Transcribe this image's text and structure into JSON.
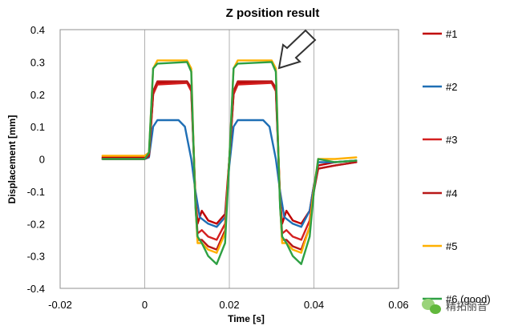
{
  "chart_data": {
    "type": "line",
    "title": "Z position result",
    "xlabel": "Time [s]",
    "ylabel": "Displacement [mm]",
    "xlim": [
      -0.02,
      0.06
    ],
    "ylim": [
      -0.4,
      0.4
    ],
    "x_ticks": [
      "-0.02",
      "0",
      "0.02",
      "0.04",
      "0.06"
    ],
    "y_ticks": [
      "0.4",
      "0.3",
      "0.2",
      "0.1",
      "0",
      "-0.1",
      "-0.2",
      "-0.3",
      "-0.4"
    ],
    "grid": "vertical",
    "legend_position": "right",
    "series": [
      {
        "name": "#1",
        "color": "#C00000",
        "points": [
          [
            -0.01,
            0.005
          ],
          [
            0.0,
            0.005
          ],
          [
            0.001,
            0.01
          ],
          [
            0.002,
            0.2
          ],
          [
            0.003,
            0.235
          ],
          [
            0.01,
            0.24
          ],
          [
            0.011,
            0.22
          ],
          [
            0.0115,
            0.05
          ],
          [
            0.012,
            -0.12
          ],
          [
            0.0125,
            -0.2
          ],
          [
            0.0135,
            -0.16
          ],
          [
            0.015,
            -0.19
          ],
          [
            0.017,
            -0.2
          ],
          [
            0.019,
            -0.17
          ],
          [
            0.02,
            0.0
          ],
          [
            0.021,
            0.2
          ],
          [
            0.022,
            0.235
          ],
          [
            0.03,
            0.24
          ],
          [
            0.031,
            0.22
          ],
          [
            0.0315,
            0.05
          ],
          [
            0.032,
            -0.12
          ],
          [
            0.0325,
            -0.2
          ],
          [
            0.0335,
            -0.16
          ],
          [
            0.035,
            -0.19
          ],
          [
            0.037,
            -0.2
          ],
          [
            0.039,
            -0.16
          ],
          [
            0.04,
            -0.08
          ],
          [
            0.041,
            -0.02
          ],
          [
            0.045,
            -0.01
          ],
          [
            0.05,
            -0.005
          ]
        ]
      },
      {
        "name": "#2",
        "color": "#1F6FB5",
        "points": [
          [
            -0.01,
            0.0
          ],
          [
            0.0,
            0.0
          ],
          [
            0.001,
            0.005
          ],
          [
            0.002,
            0.1
          ],
          [
            0.003,
            0.12
          ],
          [
            0.008,
            0.12
          ],
          [
            0.0095,
            0.1
          ],
          [
            0.011,
            0.0
          ],
          [
            0.012,
            -0.1
          ],
          [
            0.013,
            -0.18
          ],
          [
            0.015,
            -0.2
          ],
          [
            0.017,
            -0.21
          ],
          [
            0.019,
            -0.18
          ],
          [
            0.02,
            -0.02
          ],
          [
            0.021,
            0.1
          ],
          [
            0.022,
            0.12
          ],
          [
            0.028,
            0.12
          ],
          [
            0.0295,
            0.1
          ],
          [
            0.031,
            0.0
          ],
          [
            0.032,
            -0.1
          ],
          [
            0.033,
            -0.18
          ],
          [
            0.035,
            -0.2
          ],
          [
            0.037,
            -0.21
          ],
          [
            0.039,
            -0.16
          ],
          [
            0.04,
            -0.08
          ],
          [
            0.041,
            -0.01
          ],
          [
            0.045,
            -0.01
          ],
          [
            0.05,
            -0.005
          ]
        ]
      },
      {
        "name": "#3",
        "color": "#D42020",
        "points": [
          [
            -0.01,
            0.0
          ],
          [
            0.0,
            0.0
          ],
          [
            0.001,
            0.01
          ],
          [
            0.002,
            0.2
          ],
          [
            0.003,
            0.23
          ],
          [
            0.01,
            0.235
          ],
          [
            0.011,
            0.21
          ],
          [
            0.0115,
            0.04
          ],
          [
            0.012,
            -0.13
          ],
          [
            0.0125,
            -0.23
          ],
          [
            0.0135,
            -0.22
          ],
          [
            0.015,
            -0.24
          ],
          [
            0.017,
            -0.25
          ],
          [
            0.019,
            -0.2
          ],
          [
            0.02,
            0.0
          ],
          [
            0.021,
            0.2
          ],
          [
            0.022,
            0.23
          ],
          [
            0.03,
            0.235
          ],
          [
            0.031,
            0.21
          ],
          [
            0.0315,
            0.04
          ],
          [
            0.032,
            -0.13
          ],
          [
            0.0325,
            -0.23
          ],
          [
            0.0335,
            -0.22
          ],
          [
            0.035,
            -0.24
          ],
          [
            0.037,
            -0.25
          ],
          [
            0.039,
            -0.19
          ],
          [
            0.04,
            -0.09
          ],
          [
            0.041,
            -0.03
          ],
          [
            0.045,
            -0.02
          ],
          [
            0.05,
            -0.01
          ]
        ]
      },
      {
        "name": "#4",
        "color": "#B81818",
        "points": [
          [
            -0.01,
            0.0
          ],
          [
            0.0,
            0.0
          ],
          [
            0.001,
            0.01
          ],
          [
            0.002,
            0.21
          ],
          [
            0.003,
            0.24
          ],
          [
            0.01,
            0.24
          ],
          [
            0.011,
            0.22
          ],
          [
            0.0115,
            0.05
          ],
          [
            0.012,
            -0.14
          ],
          [
            0.0125,
            -0.25
          ],
          [
            0.0135,
            -0.25
          ],
          [
            0.015,
            -0.27
          ],
          [
            0.017,
            -0.28
          ],
          [
            0.019,
            -0.22
          ],
          [
            0.02,
            0.0
          ],
          [
            0.021,
            0.21
          ],
          [
            0.022,
            0.24
          ],
          [
            0.03,
            0.24
          ],
          [
            0.031,
            0.22
          ],
          [
            0.0315,
            0.05
          ],
          [
            0.032,
            -0.14
          ],
          [
            0.0325,
            -0.25
          ],
          [
            0.0335,
            -0.25
          ],
          [
            0.035,
            -0.27
          ],
          [
            0.037,
            -0.28
          ],
          [
            0.039,
            -0.21
          ],
          [
            0.04,
            -0.1
          ],
          [
            0.041,
            -0.03
          ],
          [
            0.045,
            -0.02
          ],
          [
            0.05,
            -0.01
          ]
        ]
      },
      {
        "name": "#5",
        "color": "#FFB000",
        "points": [
          [
            -0.01,
            0.01
          ],
          [
            0.0,
            0.01
          ],
          [
            0.001,
            0.02
          ],
          [
            0.002,
            0.28
          ],
          [
            0.003,
            0.305
          ],
          [
            0.01,
            0.305
          ],
          [
            0.011,
            0.28
          ],
          [
            0.0115,
            0.06
          ],
          [
            0.012,
            -0.14
          ],
          [
            0.0125,
            -0.26
          ],
          [
            0.0135,
            -0.26
          ],
          [
            0.015,
            -0.28
          ],
          [
            0.017,
            -0.29
          ],
          [
            0.019,
            -0.23
          ],
          [
            0.02,
            0.0
          ],
          [
            0.021,
            0.28
          ],
          [
            0.022,
            0.305
          ],
          [
            0.03,
            0.305
          ],
          [
            0.031,
            0.28
          ],
          [
            0.0315,
            0.06
          ],
          [
            0.032,
            -0.14
          ],
          [
            0.0325,
            -0.26
          ],
          [
            0.0335,
            -0.26
          ],
          [
            0.035,
            -0.28
          ],
          [
            0.037,
            -0.29
          ],
          [
            0.039,
            -0.21
          ],
          [
            0.04,
            -0.09
          ],
          [
            0.041,
            0.0
          ],
          [
            0.045,
            0.0
          ],
          [
            0.05,
            0.005
          ]
        ]
      },
      {
        "name": "#6 (good)",
        "color": "#2EA043",
        "points": [
          [
            -0.01,
            0.0
          ],
          [
            0.0,
            0.0
          ],
          [
            0.001,
            0.02
          ],
          [
            0.002,
            0.28
          ],
          [
            0.003,
            0.295
          ],
          [
            0.01,
            0.3
          ],
          [
            0.011,
            0.27
          ],
          [
            0.0115,
            0.05
          ],
          [
            0.012,
            -0.15
          ],
          [
            0.0125,
            -0.24
          ],
          [
            0.0135,
            -0.26
          ],
          [
            0.015,
            -0.3
          ],
          [
            0.017,
            -0.325
          ],
          [
            0.019,
            -0.26
          ],
          [
            0.02,
            0.0
          ],
          [
            0.021,
            0.28
          ],
          [
            0.022,
            0.295
          ],
          [
            0.03,
            0.3
          ],
          [
            0.031,
            0.27
          ],
          [
            0.0315,
            0.05
          ],
          [
            0.032,
            -0.15
          ],
          [
            0.0325,
            -0.24
          ],
          [
            0.0335,
            -0.26
          ],
          [
            0.035,
            -0.3
          ],
          [
            0.037,
            -0.325
          ],
          [
            0.039,
            -0.24
          ],
          [
            0.04,
            -0.1
          ],
          [
            0.041,
            0.0
          ],
          [
            0.045,
            -0.01
          ],
          [
            0.05,
            -0.005
          ]
        ]
      }
    ]
  },
  "watermark": {
    "text": "精拓丽音",
    "icon": "wechat-icon"
  },
  "colors": {
    "grid": "#B0B0B0",
    "frame": "#909090",
    "arrow": "#333333"
  }
}
